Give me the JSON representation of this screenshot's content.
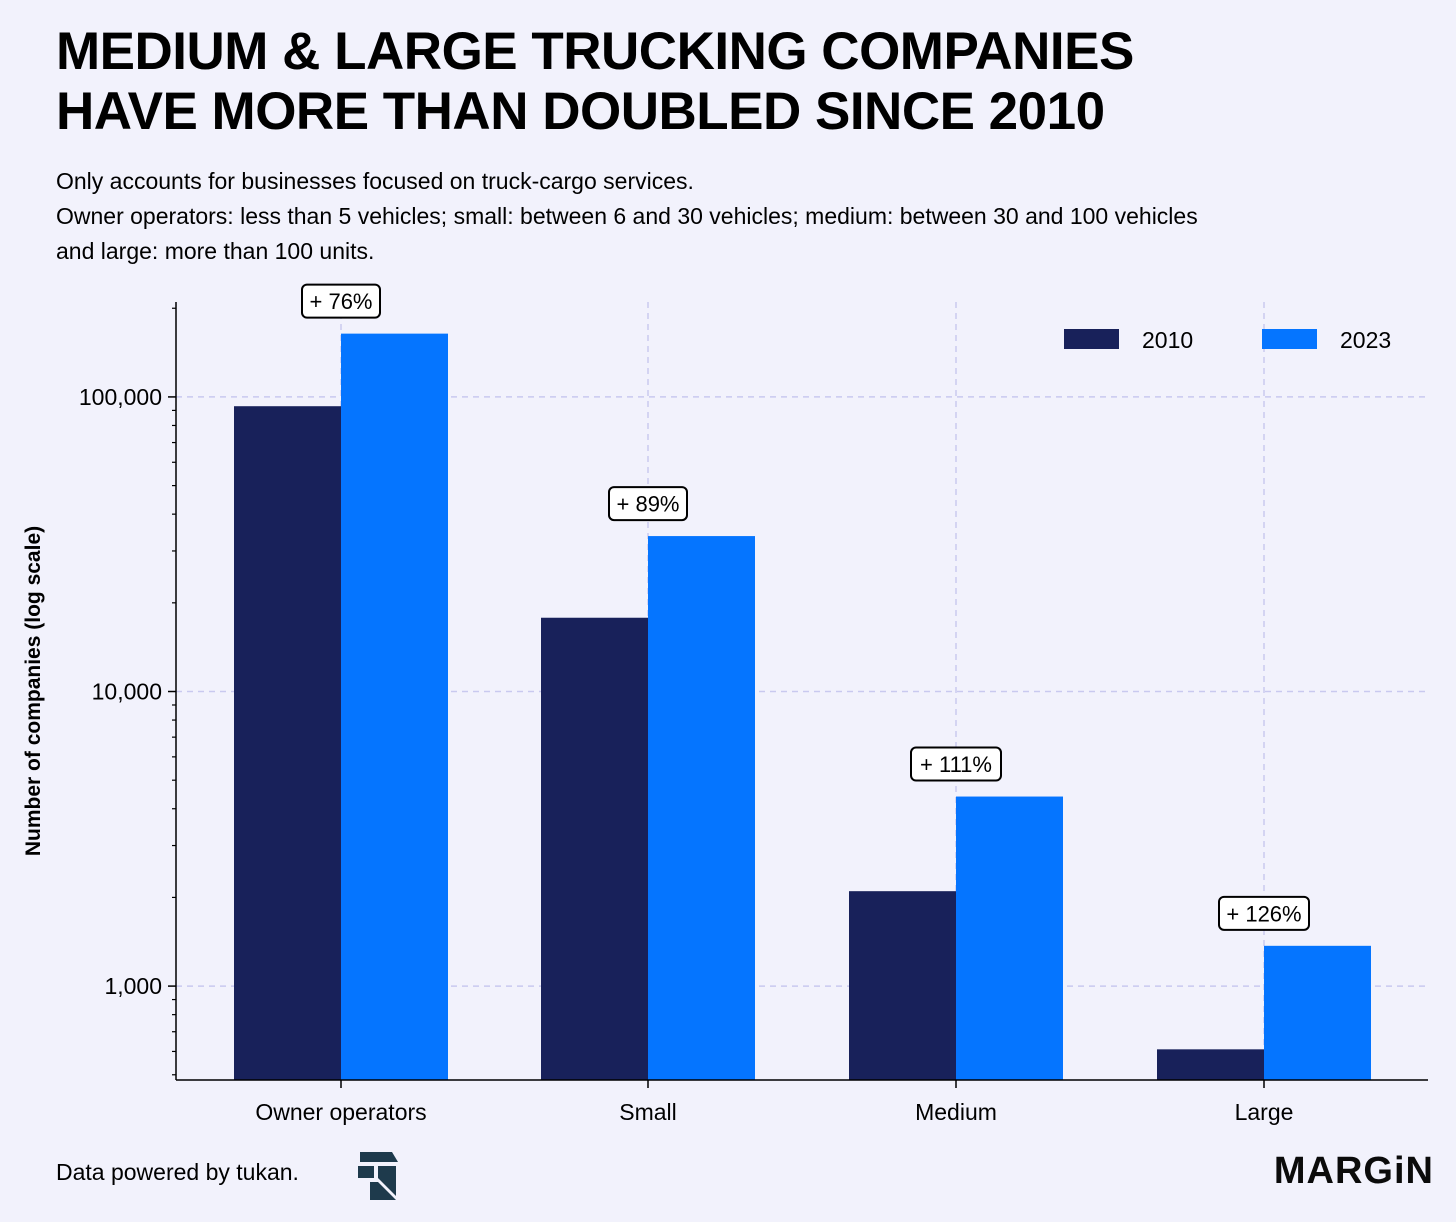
{
  "header": {
    "title_line1": "MEDIUM & LARGE TRUCKING COMPANIES",
    "title_line2": "HAVE MORE THAN DOUBLED SINCE 2010",
    "subtitle_line1": "Only accounts for businesses focused on truck-cargo services.",
    "subtitle_line2": "Owner operators: less than 5 vehicles; small: between 6 and 30 vehicles; medium: between 30 and 100 vehicles",
    "subtitle_line3": "and large: more than 100 units."
  },
  "colors": {
    "background": "#f2f2fc",
    "series_2010": "#18215a",
    "series_2023": "#0575ff",
    "grid": "#c9c9ef"
  },
  "chart_data": {
    "type": "bar",
    "title": "MEDIUM & LARGE TRUCKING COMPANIES HAVE MORE THAN DOUBLED SINCE 2010",
    "ylabel": "Number of companies (log scale)",
    "yscale": "log",
    "ylim": [
      480,
      210000
    ],
    "yticks": [
      {
        "value": 1000,
        "label": "1,000"
      },
      {
        "value": 10000,
        "label": "10,000"
      },
      {
        "value": 100000,
        "label": "100,000"
      }
    ],
    "categories": [
      "Owner operators",
      "Small",
      "Medium",
      "Large"
    ],
    "series": [
      {
        "name": "2010",
        "values": [
          93000,
          17800,
          2100,
          610
        ]
      },
      {
        "name": "2023",
        "values": [
          164000,
          33700,
          4400,
          1370
        ]
      }
    ],
    "annotations": [
      "+ 76%",
      "+ 89%",
      "+ 111%",
      "+ 126%"
    ],
    "grid": "dashed",
    "legend": "top-right"
  },
  "footer": {
    "source": "Data powered by tukan.",
    "brand": "MARGiN"
  }
}
